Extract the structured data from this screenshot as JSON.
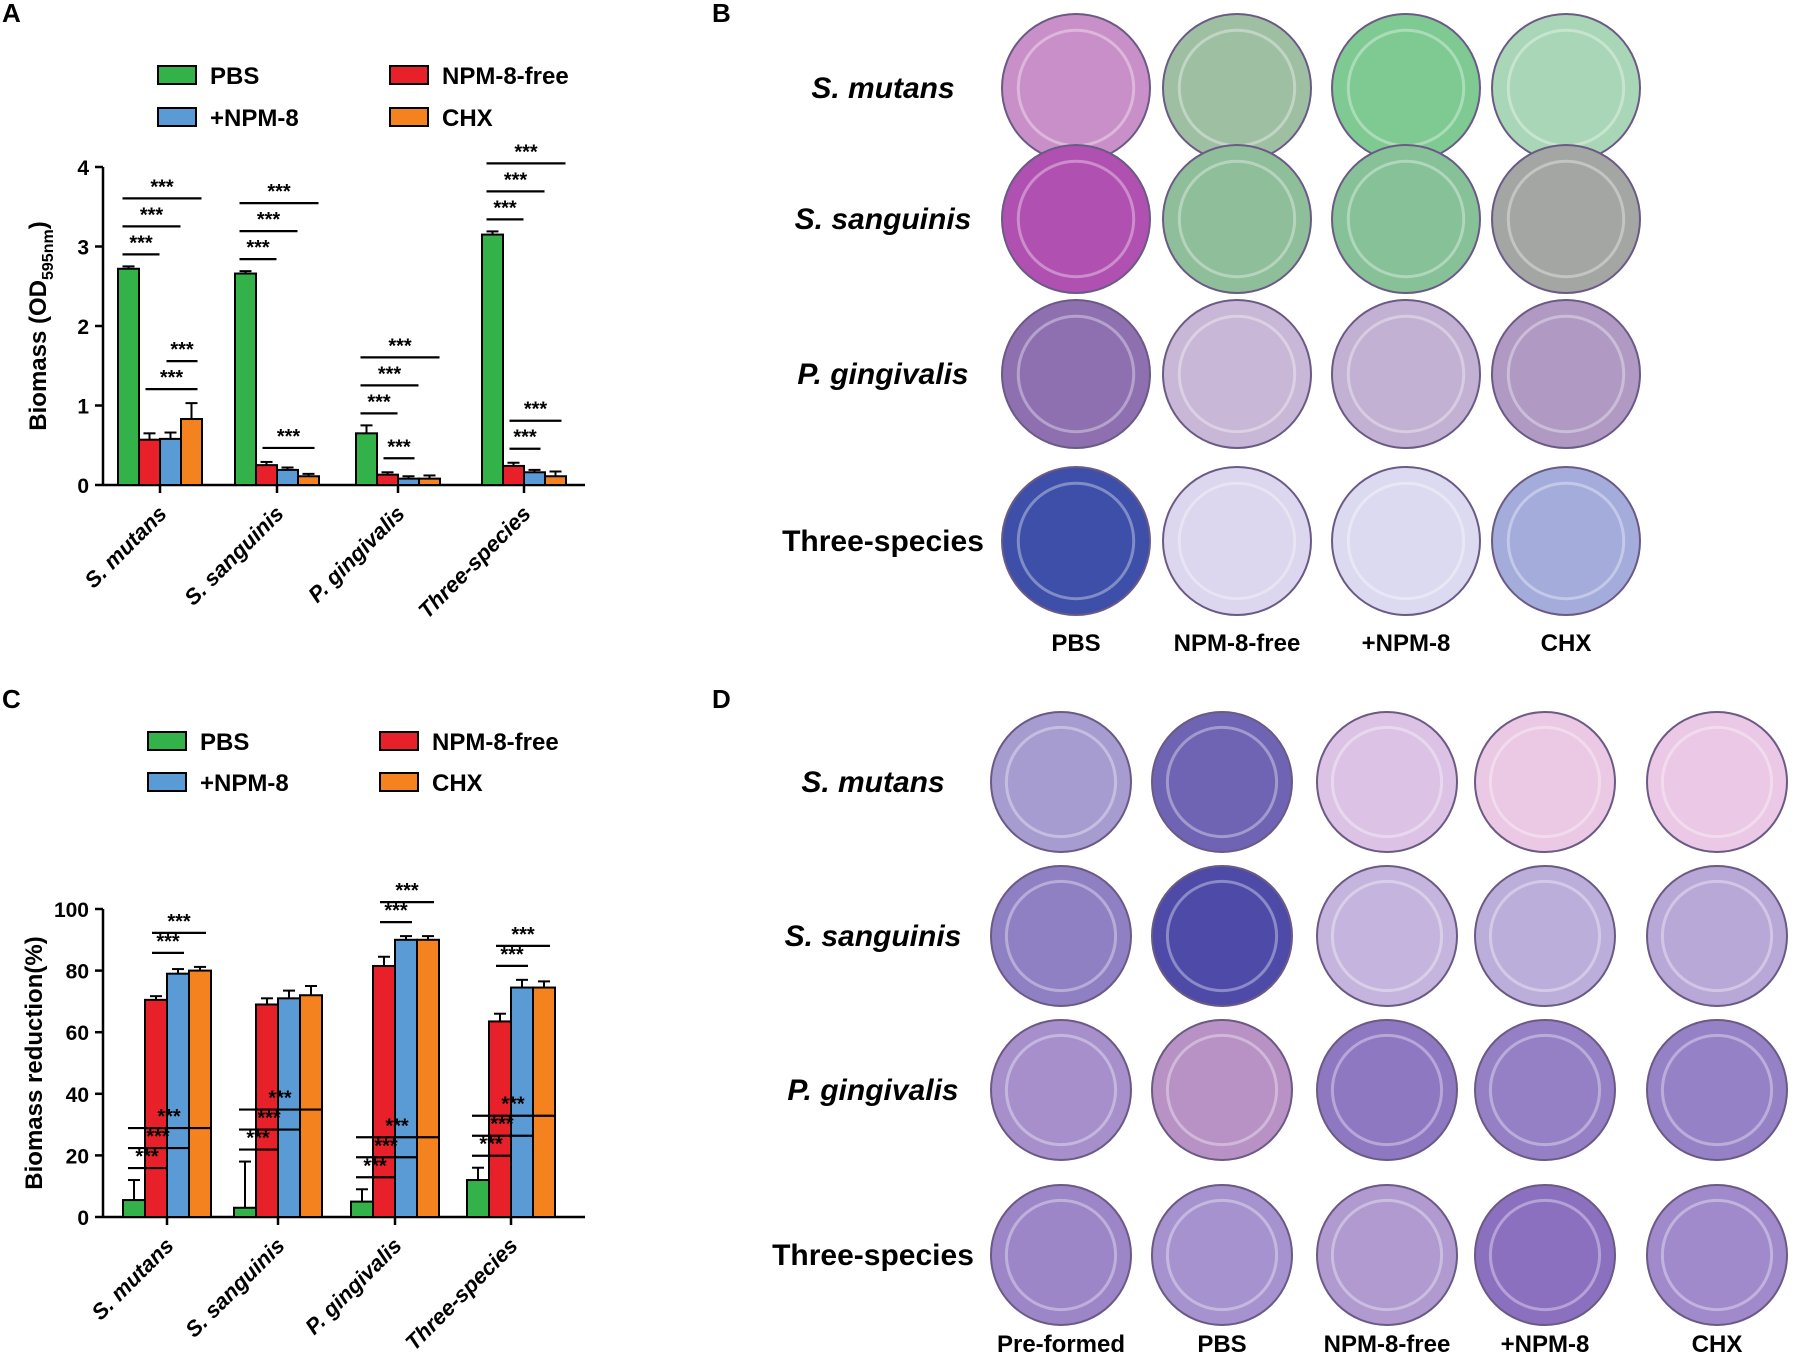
{
  "panels": {
    "a": "A",
    "b": "B",
    "c": "C",
    "d": "D"
  },
  "colors": {
    "PBS": "#33b24a",
    "NPM-8-free": "#e8202a",
    "+NPM-8": "#5b9bd5",
    "CHX": "#f4821f"
  },
  "chart_data": [
    {
      "type": "bar",
      "panel": "A",
      "categories": [
        "S. mutans",
        "S. sanguinis",
        "P. gingivalis",
        "Three-species"
      ],
      "series": [
        {
          "name": "PBS",
          "values": [
            2.72,
            2.66,
            0.65,
            3.15
          ],
          "errors": [
            0.03,
            0.03,
            0.1,
            0.04
          ]
        },
        {
          "name": "NPM-8-free",
          "values": [
            0.57,
            0.25,
            0.13,
            0.24
          ],
          "errors": [
            0.08,
            0.04,
            0.03,
            0.04
          ]
        },
        {
          "name": "+NPM-8",
          "values": [
            0.58,
            0.19,
            0.08,
            0.16
          ],
          "errors": [
            0.08,
            0.03,
            0.03,
            0.03
          ]
        },
        {
          "name": "CHX",
          "values": [
            0.83,
            0.11,
            0.08,
            0.11
          ],
          "errors": [
            0.2,
            0.03,
            0.04,
            0.06
          ]
        }
      ],
      "ylabel": "Biomass (OD",
      "ylabel_sub": "595nm",
      "ylabel_close": ")",
      "ylim": [
        0,
        4
      ],
      "yticks": [
        0,
        1,
        2,
        3,
        4
      ],
      "sig_label": "***",
      "comparisons": [
        [
          [
            0,
            1
          ],
          [
            0,
            2
          ],
          [
            0,
            3
          ],
          [
            1,
            3
          ],
          [
            2,
            3
          ]
        ],
        [
          [
            0,
            1
          ],
          [
            0,
            2
          ],
          [
            0,
            3
          ],
          [
            1,
            3
          ]
        ],
        [
          [
            0,
            1
          ],
          [
            0,
            2
          ],
          [
            0,
            3
          ],
          [
            1,
            2
          ]
        ],
        [
          [
            0,
            1
          ],
          [
            0,
            2
          ],
          [
            0,
            3
          ],
          [
            1,
            2
          ],
          [
            1,
            3
          ]
        ]
      ],
      "legend": [
        "PBS",
        "NPM-8-free",
        "+NPM-8",
        "CHX"
      ]
    },
    {
      "type": "bar",
      "panel": "C",
      "categories": [
        "S. mutans",
        "S. sanguinis",
        "P. gingivalis",
        "Three-species"
      ],
      "series": [
        {
          "name": "PBS",
          "values": [
            5.5,
            3,
            5,
            12
          ],
          "errors": [
            6.5,
            15,
            4,
            4
          ]
        },
        {
          "name": "NPM-8-free",
          "values": [
            70.5,
            69,
            81.5,
            63.5
          ],
          "errors": [
            1.2,
            2,
            3,
            2.5
          ]
        },
        {
          "name": "+NPM-8",
          "values": [
            79,
            71,
            90,
            74.5
          ],
          "errors": [
            1.5,
            2.5,
            1.2,
            2.5
          ]
        },
        {
          "name": "CHX",
          "values": [
            80,
            72,
            90,
            74.5
          ],
          "errors": [
            1.2,
            3,
            1.2,
            2
          ]
        }
      ],
      "ylabel": "Biomass reduction(%)",
      "ylim": [
        0,
        100
      ],
      "yticks": [
        0,
        20,
        40,
        60,
        80,
        100
      ],
      "sig_label": "***",
      "comparisons": [
        [
          [
            0,
            1
          ],
          [
            0,
            2
          ],
          [
            0,
            3
          ],
          [
            1,
            2
          ],
          [
            1,
            3
          ]
        ],
        [
          [
            0,
            1
          ],
          [
            0,
            2
          ],
          [
            0,
            3
          ]
        ],
        [
          [
            0,
            1
          ],
          [
            0,
            2
          ],
          [
            0,
            3
          ],
          [
            1,
            2
          ],
          [
            1,
            3
          ]
        ],
        [
          [
            0,
            1
          ],
          [
            0,
            2
          ],
          [
            0,
            3
          ],
          [
            1,
            2
          ],
          [
            1,
            3
          ]
        ]
      ],
      "legend": [
        "PBS",
        "NPM-8-free",
        "+NPM-8",
        "CHX"
      ]
    }
  ],
  "panel_b": {
    "rows": [
      "S. mutans",
      "S. sanguinis",
      "P. gingivalis",
      "Three-species"
    ],
    "columns": [
      "PBS",
      "NPM-8-free",
      "+NPM-8",
      "CHX"
    ],
    "well_colors": [
      [
        "#c98fc8",
        "#9fbfa3",
        "#7fca93",
        "#a9d6b6"
      ],
      [
        "#b050b0",
        "#8fbe9a",
        "#86c197",
        "#a3a6a3"
      ],
      [
        "#8e70b0",
        "#c8b7d6",
        "#c2b1d3",
        "#b09ac4"
      ],
      [
        "#3d4fa8",
        "#dcd6ee",
        "#dcdaf0",
        "#a4acdc"
      ]
    ]
  },
  "panel_d": {
    "rows": [
      "S. mutans",
      "S. sanguinis",
      "P. gingivalis",
      "Three-species"
    ],
    "columns": [
      "Pre-formed",
      "PBS",
      "NPM-8-free",
      "+NPM-8",
      "CHX"
    ],
    "well_colors": [
      [
        "#a79cd0",
        "#6e64b3",
        "#dcc3e6",
        "#ebc8e4",
        "#ebc8e5"
      ],
      [
        "#8f80c4",
        "#4e4aa8",
        "#c5b5de",
        "#bcaedb",
        "#b8a8d8"
      ],
      [
        "#a68fcb",
        "#b891c5",
        "#8f78c2",
        "#9580c6",
        "#9582c6"
      ],
      [
        "#9c86c8",
        "#a692ce",
        "#b09ad0",
        "#8c70c0",
        "#a08acb"
      ]
    ]
  }
}
